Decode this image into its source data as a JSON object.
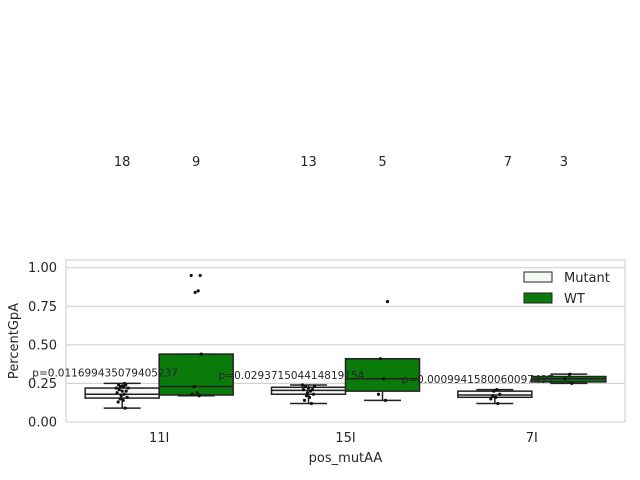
{
  "chart_data": {
    "type": "box",
    "xlabel": "pos_mutAA",
    "ylabel": "PercentGpA",
    "categories": [
      "11I",
      "15I",
      "7I"
    ],
    "ylim": [
      0,
      1.05
    ],
    "yticks": [
      0.0,
      0.25,
      0.5,
      0.75,
      1.0
    ],
    "ytick_labels": [
      "0.00",
      "0.25",
      "0.50",
      "0.75",
      "1.00"
    ],
    "grid": true,
    "legend_position": "top-right",
    "series": [
      {
        "name": "Mutant",
        "color": "#f4f9f4",
        "boxes": [
          {
            "whislo": 0.09,
            "q1": 0.155,
            "med": 0.18,
            "q3": 0.22,
            "whishi": 0.25
          },
          {
            "whislo": 0.12,
            "q1": 0.18,
            "med": 0.205,
            "q3": 0.225,
            "whishi": 0.24
          },
          {
            "whislo": 0.12,
            "q1": 0.16,
            "med": 0.175,
            "q3": 0.2,
            "whishi": 0.21
          }
        ],
        "points": [
          [
            0.09,
            0.13,
            0.14,
            0.15,
            0.16,
            0.17,
            0.18,
            0.19,
            0.2,
            0.2,
            0.21,
            0.22,
            0.22,
            0.23,
            0.23,
            0.24,
            0.24,
            0.25
          ],
          [
            0.12,
            0.14,
            0.16,
            0.17,
            0.18,
            0.19,
            0.2,
            0.21,
            0.21,
            0.22,
            0.23,
            0.23,
            0.24
          ],
          [
            0.12,
            0.15,
            0.16,
            0.17,
            0.18,
            0.2,
            0.21
          ]
        ]
      },
      {
        "name": "WT",
        "color": "#0a7a0a",
        "boxes": [
          {
            "whislo": 0.17,
            "q1": 0.175,
            "med": 0.23,
            "q3": 0.44,
            "whishi": 0.44,
            "fliers": [
              0.84,
              0.85,
              0.95,
              0.95
            ]
          },
          {
            "whislo": 0.14,
            "q1": 0.2,
            "med": 0.28,
            "q3": 0.41,
            "whishi": 0.41,
            "fliers": [
              0.78
            ]
          },
          {
            "whislo": 0.25,
            "q1": 0.26,
            "med": 0.28,
            "q3": 0.295,
            "whishi": 0.31
          }
        ],
        "points": [
          [
            0.17,
            0.18,
            0.19,
            0.23,
            0.44,
            0.84,
            0.85,
            0.95,
            0.95
          ],
          [
            0.14,
            0.18,
            0.28,
            0.41,
            0.78
          ],
          [
            0.25,
            0.28,
            0.31
          ]
        ]
      }
    ],
    "counts": [
      {
        "mutant": "18",
        "wt": "9"
      },
      {
        "mutant": "13",
        "wt": "5"
      },
      {
        "mutant": "7",
        "wt": "3"
      }
    ],
    "pvalues": [
      {
        "text": "p=0.011699435079405237",
        "y": 0.32
      },
      {
        "text": "p=0.029371504414819154",
        "y": 0.305
      },
      {
        "text": "p=0.0009941580060097497",
        "y": 0.28
      }
    ]
  }
}
